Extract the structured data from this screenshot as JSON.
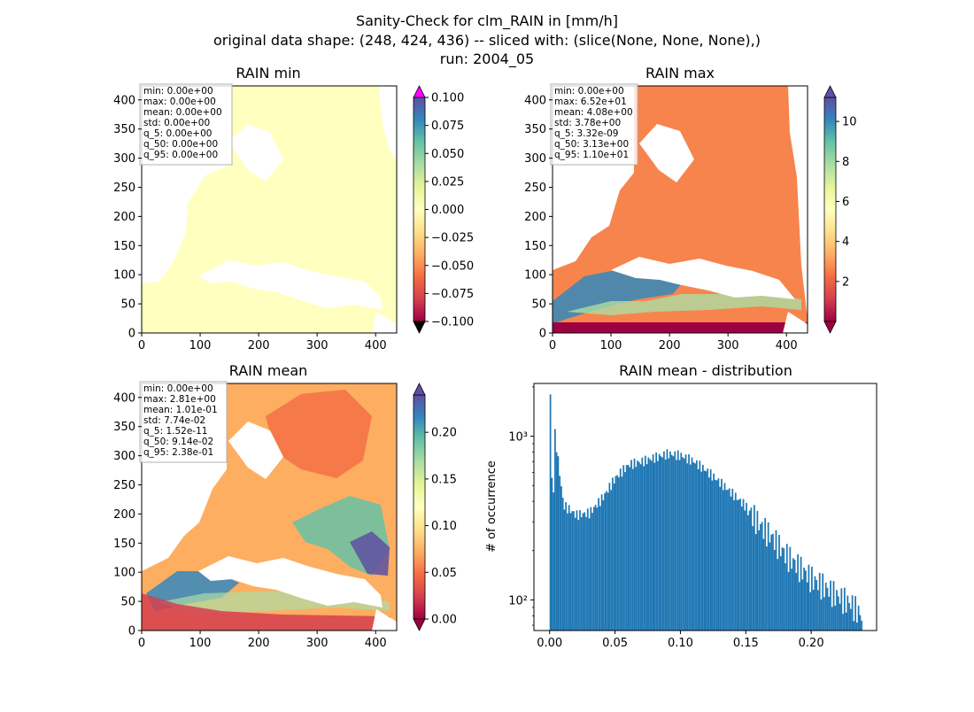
{
  "figure": {
    "title_lines": [
      "Sanity-Check for clm_RAIN in [mm/h]",
      "original data shape: (248, 424, 436) -- sliced with: (slice(None, None, None),)",
      "run: 2004_05"
    ]
  },
  "colormap": "Spectral",
  "colors": {
    "missing_mask": "#ffffff",
    "histogram_bar": "#1f77b4",
    "min_overflow": "#ff00ff",
    "max_overflow": "#000000"
  },
  "chart_data": [
    {
      "type": "heatmap",
      "title": "RAIN min",
      "x_ticks": [
        "0",
        "100",
        "200",
        "300",
        "400"
      ],
      "y_ticks": [
        "0",
        "50",
        "100",
        "150",
        "200",
        "250",
        "300",
        "350",
        "400"
      ],
      "xlim": [
        0,
        436
      ],
      "ylim": [
        0,
        424
      ],
      "stats": [
        "min: 0.00e+00",
        "max: 0.00e+00",
        "mean: 0.00e+00",
        "std: 0.00e+00",
        "q_5: 0.00e+00",
        "q_50: 0.00e+00",
        "q_95: 0.00e+00"
      ],
      "colorbar": {
        "range": [
          -0.1,
          0.1
        ],
        "ticks": [
          "0.100",
          "0.075",
          "0.050",
          "0.025",
          "0.000",
          "−0.025",
          "−0.050",
          "−0.075",
          "−0.100"
        ]
      }
    },
    {
      "type": "heatmap",
      "title": "RAIN max",
      "x_ticks": [
        "0",
        "100",
        "200",
        "300",
        "400"
      ],
      "y_ticks": [
        "0",
        "50",
        "100",
        "150",
        "200",
        "250",
        "300",
        "350",
        "400"
      ],
      "xlim": [
        0,
        436
      ],
      "ylim": [
        0,
        424
      ],
      "stats": [
        "min: 0.00e+00",
        "max: 6.52e+01",
        "mean: 4.08e+00",
        "std: 3.78e+00",
        "q_5: 3.32e-09",
        "q_50: 3.13e+00",
        "q_95: 1.10e+01"
      ],
      "colorbar": {
        "range": [
          0,
          11.2
        ],
        "ticks": [
          "10",
          "8",
          "6",
          "4",
          "2"
        ]
      }
    },
    {
      "type": "heatmap",
      "title": "RAIN mean",
      "x_ticks": [
        "0",
        "100",
        "200",
        "300",
        "400"
      ],
      "y_ticks": [
        "0",
        "50",
        "100",
        "150",
        "200",
        "250",
        "300",
        "350",
        "400"
      ],
      "xlim": [
        0,
        436
      ],
      "ylim": [
        0,
        424
      ],
      "stats": [
        "min: 0.00e+00",
        "max: 2.81e+00",
        "mean: 1.01e-01",
        "std: 7.74e-02",
        "q_5: 1.52e-11",
        "q_50: 9.14e-02",
        "q_95: 2.38e-01"
      ],
      "colorbar": {
        "range": [
          0,
          0.24
        ],
        "ticks": [
          "0.20",
          "0.15",
          "0.10",
          "0.05",
          "0.00"
        ]
      }
    },
    {
      "type": "bar",
      "title": "RAIN mean - distribution",
      "ylabel": "# of occurrence",
      "xlabel": "",
      "y_scale": "log",
      "x_ticks": [
        "0.00",
        "0.05",
        "0.10",
        "0.15",
        "0.20"
      ],
      "y_ticks": [
        "10²",
        "10³"
      ],
      "xlim": [
        -0.012,
        0.25
      ],
      "ylim": [
        65,
        2100
      ],
      "bin_width": 0.00119,
      "bins_x_start": [
        0.0,
        0.01,
        0.02,
        0.03,
        0.04,
        0.05,
        0.06,
        0.07,
        0.08,
        0.09,
        0.1,
        0.11,
        0.12,
        0.13,
        0.14,
        0.15,
        0.16,
        0.17,
        0.18,
        0.19,
        0.2,
        0.21,
        0.22,
        0.23,
        0.238
      ],
      "bins_count": [
        1800,
        380,
        330,
        340,
        420,
        560,
        670,
        700,
        740,
        780,
        760,
        700,
        610,
        520,
        440,
        370,
        290,
        240,
        190,
        160,
        135,
        120,
        105,
        95,
        80
      ]
    }
  ]
}
